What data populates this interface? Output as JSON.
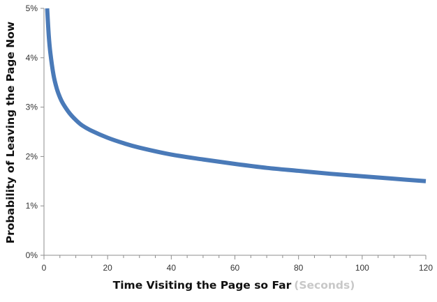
{
  "chart_data": {
    "type": "line",
    "title": "",
    "xlabel": "Time Visiting the Page so Far",
    "xlabel_unit": "(Seconds)",
    "ylabel": "Probability of Leaving  the Page Now",
    "xlim": [
      0,
      120
    ],
    "ylim": [
      0,
      5
    ],
    "x_ticks": [
      0,
      20,
      40,
      60,
      80,
      100,
      120
    ],
    "x_tick_labels": [
      "0",
      "20",
      "40",
      "60",
      "80",
      "100",
      "120"
    ],
    "x_minor_step": 5,
    "y_ticks": [
      0,
      1,
      2,
      3,
      4,
      5
    ],
    "y_tick_labels": [
      "0%",
      "1%",
      "2%",
      "3%",
      "4%",
      "5%"
    ],
    "grid": false,
    "legend": "none",
    "series": [
      {
        "color": "#4a7ab8",
        "x": [
          1,
          1.5,
          2,
          3,
          4,
          5,
          6,
          8,
          10,
          12,
          15,
          20,
          25,
          30,
          40,
          50,
          60,
          70,
          80,
          90,
          100,
          110,
          120
        ],
        "y": [
          5.0,
          4.45,
          4.1,
          3.65,
          3.38,
          3.2,
          3.07,
          2.88,
          2.74,
          2.63,
          2.52,
          2.38,
          2.27,
          2.18,
          2.04,
          1.94,
          1.85,
          1.77,
          1.71,
          1.65,
          1.6,
          1.55,
          1.5
        ]
      }
    ]
  }
}
